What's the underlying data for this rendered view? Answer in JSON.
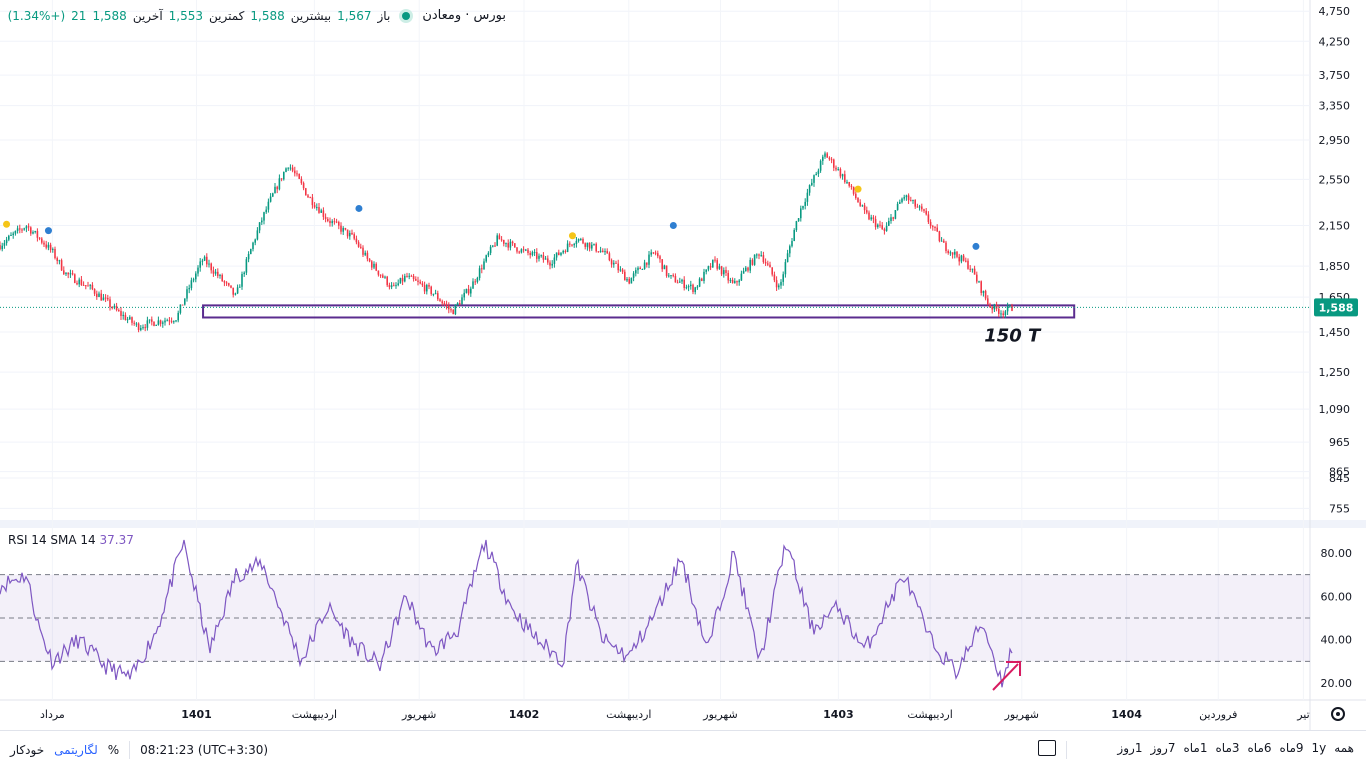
{
  "legend": {
    "symbol": "بورس · ومعادن",
    "open_label": "باز",
    "open": "1,567",
    "high_label": "بیشترین",
    "high": "1,588",
    "low_label": "کمترین",
    "low": "1,553",
    "close_label": "آخرین",
    "close": "1,588",
    "change": "21",
    "change_pct": "(+1.34%)"
  },
  "annotation": "150 T",
  "last_price": "1,588",
  "rsi_legend": {
    "name": "RSI 14 SMA 14",
    "value": "37.37"
  },
  "bottom_bar": {
    "ranges": [
      "همه",
      "1y",
      "9ماه",
      "6ماه",
      "3ماه",
      "1ماه",
      "7روز",
      "1روز"
    ],
    "time": "08:21:23 (UTC+3:30)",
    "percent": "%",
    "log": "لگاریتمی",
    "auto": "خودکار"
  },
  "colors": {
    "up": "#089981",
    "down": "#f23645",
    "rsi": "#7e57c2",
    "accent": "#2962ff",
    "box": "#5b2c8f",
    "arrow": "#d81b60"
  },
  "chart_data": [
    {
      "type": "candlestick",
      "scale": "log",
      "y_ticks": [
        4750,
        4250,
        3750,
        3350,
        2950,
        2550,
        2150,
        1850,
        1650,
        1450,
        1250,
        1090,
        965,
        865,
        845,
        755
      ],
      "x_labels": [
        {
          "label": "مرداد",
          "t": 0.04
        },
        {
          "label": "1401",
          "t": 0.15
        },
        {
          "label": "اردیبهشت",
          "t": 0.24
        },
        {
          "label": "شهریور",
          "t": 0.32
        },
        {
          "label": "1402",
          "t": 0.4
        },
        {
          "label": "اردیبهشت",
          "t": 0.48
        },
        {
          "label": "شهریور",
          "t": 0.55
        },
        {
          "label": "1403",
          "t": 0.64
        },
        {
          "label": "اردیبهشت",
          "t": 0.71
        },
        {
          "label": "شهریور",
          "t": 0.78
        },
        {
          "label": "1404",
          "t": 0.86
        },
        {
          "label": "فروردین",
          "t": 0.93
        },
        {
          "label": "تیر",
          "t": 0.995
        }
      ],
      "price_path": [
        [
          0.0,
          2000
        ],
        [
          0.02,
          2150
        ],
        [
          0.04,
          1950
        ],
        [
          0.05,
          1800
        ],
        [
          0.07,
          1700
        ],
        [
          0.09,
          1560
        ],
        [
          0.105,
          1480
        ],
        [
          0.115,
          1500
        ],
        [
          0.135,
          1530
        ],
        [
          0.145,
          1720
        ],
        [
          0.155,
          1900
        ],
        [
          0.17,
          1750
        ],
        [
          0.18,
          1650
        ],
        [
          0.2,
          2200
        ],
        [
          0.22,
          2700
        ],
        [
          0.235,
          2400
        ],
        [
          0.25,
          2200
        ],
        [
          0.27,
          2050
        ],
        [
          0.28,
          1900
        ],
        [
          0.3,
          1700
        ],
        [
          0.31,
          1780
        ],
        [
          0.33,
          1680
        ],
        [
          0.345,
          1560
        ],
        [
          0.36,
          1720
        ],
        [
          0.38,
          2050
        ],
        [
          0.4,
          1950
        ],
        [
          0.42,
          1880
        ],
        [
          0.44,
          2050
        ],
        [
          0.46,
          1950
        ],
        [
          0.48,
          1750
        ],
        [
          0.5,
          1950
        ],
        [
          0.51,
          1780
        ],
        [
          0.53,
          1700
        ],
        [
          0.545,
          1880
        ],
        [
          0.56,
          1720
        ],
        [
          0.58,
          1950
        ],
        [
          0.595,
          1700
        ],
        [
          0.61,
          2250
        ],
        [
          0.63,
          2800
        ],
        [
          0.645,
          2550
        ],
        [
          0.66,
          2250
        ],
        [
          0.675,
          2100
        ],
        [
          0.69,
          2400
        ],
        [
          0.705,
          2250
        ],
        [
          0.72,
          2000
        ],
        [
          0.74,
          1850
        ],
        [
          0.755,
          1600
        ],
        [
          0.765,
          1560
        ],
        [
          0.773,
          1588
        ]
      ],
      "support_zone": {
        "low": 1530,
        "high": 1600,
        "t_start": 0.155,
        "t_end": 0.82
      },
      "last_price": 1588
    },
    {
      "type": "line",
      "name": "RSI 14 SMA 14",
      "y_ticks": [
        80,
        60,
        40,
        20
      ],
      "levels": [
        70,
        50,
        30
      ],
      "value": 37.37,
      "path": [
        [
          0.0,
          65
        ],
        [
          0.02,
          70
        ],
        [
          0.03,
          45
        ],
        [
          0.04,
          30
        ],
        [
          0.06,
          40
        ],
        [
          0.08,
          28
        ],
        [
          0.1,
          22
        ],
        [
          0.12,
          45
        ],
        [
          0.14,
          85
        ],
        [
          0.16,
          35
        ],
        [
          0.18,
          70
        ],
        [
          0.2,
          75
        ],
        [
          0.23,
          30
        ],
        [
          0.25,
          55
        ],
        [
          0.27,
          38
        ],
        [
          0.29,
          28
        ],
        [
          0.31,
          60
        ],
        [
          0.33,
          34
        ],
        [
          0.35,
          45
        ],
        [
          0.37,
          85
        ],
        [
          0.39,
          55
        ],
        [
          0.41,
          40
        ],
        [
          0.43,
          30
        ],
        [
          0.44,
          75
        ],
        [
          0.46,
          40
        ],
        [
          0.48,
          32
        ],
        [
          0.5,
          52
        ],
        [
          0.52,
          78
        ],
        [
          0.54,
          35
        ],
        [
          0.56,
          80
        ],
        [
          0.58,
          30
        ],
        [
          0.6,
          85
        ],
        [
          0.62,
          45
        ],
        [
          0.64,
          55
        ],
        [
          0.66,
          35
        ],
        [
          0.69,
          70
        ],
        [
          0.71,
          40
        ],
        [
          0.73,
          25
        ],
        [
          0.75,
          48
        ],
        [
          0.765,
          20
        ],
        [
          0.773,
          37.37
        ]
      ]
    }
  ]
}
